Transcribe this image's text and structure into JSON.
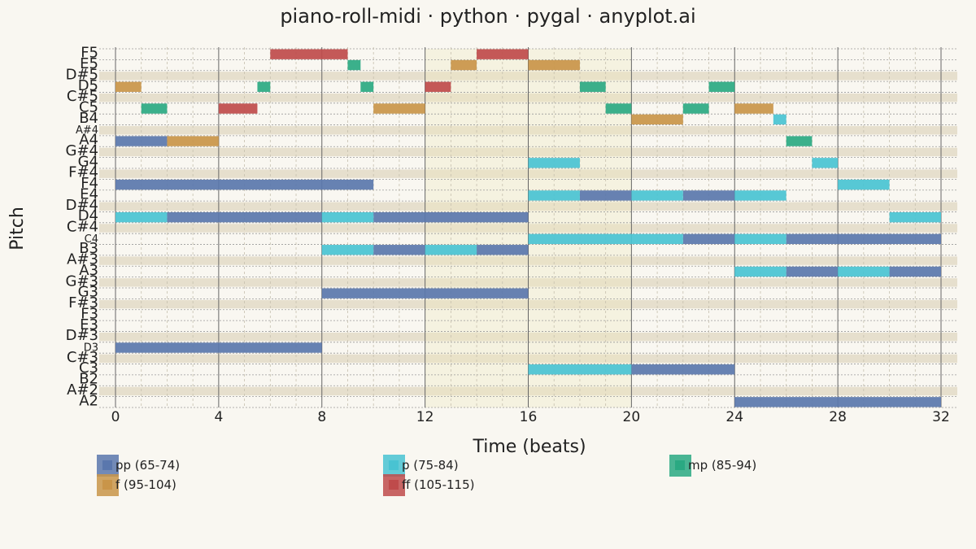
{
  "chart_data": {
    "type": "bar",
    "title": "piano-roll-midi · python · pygal · anyplot.ai",
    "xlabel": "Time (beats)",
    "ylabel": "Pitch",
    "xlim": [
      0,
      32
    ],
    "x_ticks": [
      0,
      4,
      8,
      12,
      16,
      20,
      24,
      28,
      32
    ],
    "pitch_labels": [
      "A2",
      "A#2",
      "B2",
      "C3",
      "C#3",
      "D3",
      "D#3",
      "E3",
      "F3",
      "F#3",
      "G3",
      "G#3",
      "A3",
      "A#3",
      "B3",
      "C4",
      "C#4",
      "D4",
      "D#4",
      "E4",
      "F4",
      "F#4",
      "G4",
      "G#4",
      "A4",
      "A#4",
      "B4",
      "C5",
      "C#5",
      "D5",
      "D#5",
      "E5",
      "F5"
    ],
    "highlighted_region": [
      12,
      20
    ],
    "grid": true,
    "legend_position": "bottom",
    "series": [
      {
        "name": "pp (65-74)",
        "color": "#5a77ad",
        "notes": [
          {
            "start": 0,
            "end": 2,
            "pitch": "A4"
          },
          {
            "start": 0,
            "end": 10,
            "pitch": "F4"
          },
          {
            "start": 2,
            "end": 8,
            "pitch": "D4"
          },
          {
            "start": 10,
            "end": 16,
            "pitch": "D4"
          },
          {
            "start": 0,
            "end": 8,
            "pitch": "D3"
          },
          {
            "start": 8,
            "end": 16,
            "pitch": "G3"
          },
          {
            "start": 10,
            "end": 12,
            "pitch": "B3"
          },
          {
            "start": 14,
            "end": 16,
            "pitch": "B3"
          },
          {
            "start": 18,
            "end": 20,
            "pitch": "E4"
          },
          {
            "start": 22,
            "end": 24,
            "pitch": "E4"
          },
          {
            "start": 20,
            "end": 24,
            "pitch": "C3"
          },
          {
            "start": 22,
            "end": 24,
            "pitch": "C4"
          },
          {
            "start": 26,
            "end": 32,
            "pitch": "C4"
          },
          {
            "start": 26,
            "end": 28,
            "pitch": "A3"
          },
          {
            "start": 30,
            "end": 32,
            "pitch": "A3"
          },
          {
            "start": 24,
            "end": 32,
            "pitch": "A2"
          }
        ]
      },
      {
        "name": "p (75-84)",
        "color": "#49c3d2",
        "notes": [
          {
            "start": 0,
            "end": 2,
            "pitch": "D4"
          },
          {
            "start": 8,
            "end": 10,
            "pitch": "D4"
          },
          {
            "start": 8,
            "end": 10,
            "pitch": "B3"
          },
          {
            "start": 12,
            "end": 14,
            "pitch": "B3"
          },
          {
            "start": 16,
            "end": 18,
            "pitch": "G4"
          },
          {
            "start": 16,
            "end": 18,
            "pitch": "E4"
          },
          {
            "start": 20,
            "end": 22,
            "pitch": "E4"
          },
          {
            "start": 24,
            "end": 26,
            "pitch": "E4"
          },
          {
            "start": 16,
            "end": 22,
            "pitch": "C4"
          },
          {
            "start": 24,
            "end": 26,
            "pitch": "C4"
          },
          {
            "start": 16,
            "end": 20,
            "pitch": "C3"
          },
          {
            "start": 25.5,
            "end": 26,
            "pitch": "B4"
          },
          {
            "start": 27,
            "end": 28,
            "pitch": "G4"
          },
          {
            "start": 28,
            "end": 30,
            "pitch": "F4"
          },
          {
            "start": 30,
            "end": 32,
            "pitch": "D4"
          },
          {
            "start": 24,
            "end": 26,
            "pitch": "A3"
          },
          {
            "start": 28,
            "end": 30,
            "pitch": "A3"
          }
        ]
      },
      {
        "name": "mp (85-94)",
        "color": "#2aa982",
        "notes": [
          {
            "start": 1,
            "end": 2,
            "pitch": "C5"
          },
          {
            "start": 5.5,
            "end": 6,
            "pitch": "D5"
          },
          {
            "start": 9,
            "end": 9.5,
            "pitch": "E5"
          },
          {
            "start": 9.5,
            "end": 10,
            "pitch": "D5"
          },
          {
            "start": 18,
            "end": 19,
            "pitch": "D5"
          },
          {
            "start": 19,
            "end": 20,
            "pitch": "C5"
          },
          {
            "start": 22,
            "end": 23,
            "pitch": "C5"
          },
          {
            "start": 23,
            "end": 24,
            "pitch": "D5"
          },
          {
            "start": 26,
            "end": 27,
            "pitch": "A4"
          }
        ]
      },
      {
        "name": "f (95-104)",
        "color": "#c99549",
        "notes": [
          {
            "start": 0,
            "end": 1,
            "pitch": "D5"
          },
          {
            "start": 2,
            "end": 4,
            "pitch": "A4"
          },
          {
            "start": 10,
            "end": 12,
            "pitch": "C5"
          },
          {
            "start": 13,
            "end": 14,
            "pitch": "E5"
          },
          {
            "start": 16,
            "end": 18,
            "pitch": "E5"
          },
          {
            "start": 20,
            "end": 22,
            "pitch": "B4"
          },
          {
            "start": 24,
            "end": 25.5,
            "pitch": "C5"
          }
        ]
      },
      {
        "name": "ff (105-115)",
        "color": "#bf4b4b",
        "notes": [
          {
            "start": 4,
            "end": 5.5,
            "pitch": "C5"
          },
          {
            "start": 6,
            "end": 9,
            "pitch": "F5"
          },
          {
            "start": 12,
            "end": 13,
            "pitch": "D5"
          },
          {
            "start": 14,
            "end": 16,
            "pitch": "F5"
          }
        ]
      }
    ]
  }
}
